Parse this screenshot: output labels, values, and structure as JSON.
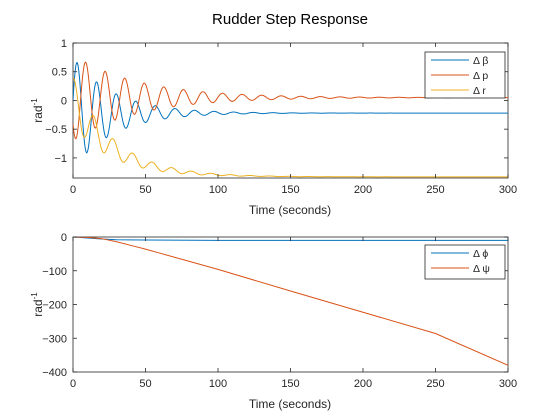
{
  "figure": {
    "title": "Rudder Step Response"
  },
  "chart_data": [
    {
      "type": "line",
      "xlabel": "Time (seconds)",
      "ylabel_base": "rad",
      "ylabel_exp": "-1",
      "xlim": [
        0,
        300
      ],
      "ylim": [
        -1.35,
        1
      ],
      "xticks": [
        0,
        50,
        100,
        150,
        200,
        250,
        300
      ],
      "yticks": [
        1,
        0.5,
        0,
        -0.5,
        -1
      ],
      "legend_position": "top-right",
      "series": [
        {
          "name": "Δ β",
          "color": "#0072BD",
          "model": {
            "final": -0.22,
            "amp": 0.95,
            "decay": 28,
            "period": 13.5,
            "phase": 0
          }
        },
        {
          "name": "Δ p",
          "color": "#D95319",
          "model": {
            "final": 0.05,
            "amp": -0.72,
            "decay": 45,
            "period": 13.5,
            "phase": 0.6
          }
        },
        {
          "name": "Δ r",
          "color": "#EDB120",
          "model": {
            "final": -1.33,
            "trend_tau": 28,
            "amp": 0.42,
            "decay": 30,
            "period": 13.5,
            "phase": 1.2
          }
        }
      ]
    },
    {
      "type": "line",
      "xlabel": "Time (seconds)",
      "ylabel_base": "rad",
      "ylabel_exp": "-1",
      "xlim": [
        0,
        300
      ],
      "ylim": [
        -400,
        0
      ],
      "xticks": [
        0,
        50,
        100,
        150,
        200,
        250,
        300
      ],
      "yticks": [
        0,
        -100,
        -200,
        -300,
        -400
      ],
      "legend_position": "top-right",
      "series": [
        {
          "name": "Δ ϕ",
          "color": "#0072BD",
          "points": [
            [
              0,
              0
            ],
            [
              10,
              -3
            ],
            [
              20,
              -6
            ],
            [
              30,
              -8
            ],
            [
              50,
              -9
            ],
            [
              100,
              -10
            ],
            [
              150,
              -10
            ],
            [
              200,
              -10
            ],
            [
              250,
              -10
            ],
            [
              300,
              -10
            ]
          ]
        },
        {
          "name": "Δ ψ",
          "color": "#D95319",
          "points": [
            [
              0,
              0
            ],
            [
              10,
              -1
            ],
            [
              20,
              -5
            ],
            [
              30,
              -14
            ],
            [
              40,
              -25
            ],
            [
              50,
              -36
            ],
            [
              60,
              -48
            ],
            [
              75,
              -66
            ],
            [
              100,
              -96
            ],
            [
              150,
              -160
            ],
            [
              200,
              -223
            ],
            [
              250,
              -286
            ],
            [
              300,
              -380
            ]
          ]
        }
      ]
    }
  ]
}
